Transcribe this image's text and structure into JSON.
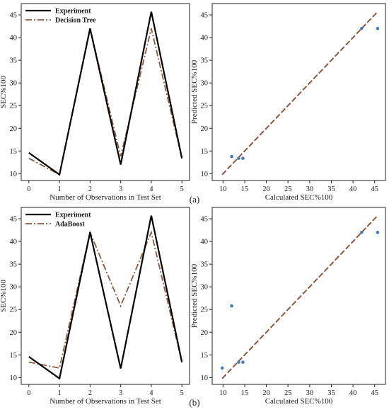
{
  "panels": [
    {
      "label": "(a)",
      "line_chart": {
        "type": "line",
        "xlabel": "Number of Observations in Test Set",
        "ylabel": "SEC%100",
        "xlim": [
          -0.25,
          5.25
        ],
        "ylim": [
          8.5,
          47.5
        ],
        "xticks": [
          0,
          1,
          2,
          3,
          4,
          5
        ],
        "yticks": [
          10,
          15,
          20,
          25,
          30,
          35,
          40,
          45
        ],
        "grid": false,
        "legend_position": "top-left",
        "x": [
          0,
          1,
          2,
          3,
          4,
          5
        ],
        "series": [
          {
            "name": "Experiment",
            "values": [
              14.6,
              9.8,
              42.0,
              12.0,
              45.7,
              13.4
            ],
            "color": "#000000",
            "style": "solid"
          },
          {
            "name": "Decision Tree",
            "values": [
              13.4,
              9.8,
              42.0,
              13.8,
              42.0,
              13.4
            ],
            "color": "#8b5a3c",
            "style": "dashdot"
          }
        ]
      },
      "scatter_chart": {
        "type": "scatter",
        "xlabel": "Calculated SEC%100",
        "ylabel": "Predicted SEC%100",
        "xlim": [
          7.5,
          47.5
        ],
        "ylim": [
          8.5,
          47.5
        ],
        "xticks": [
          10,
          15,
          20,
          25,
          30,
          35,
          40,
          45
        ],
        "yticks": [
          10,
          15,
          20,
          25,
          30,
          35,
          40,
          45
        ],
        "grid": false,
        "points": [
          {
            "x": 12.0,
            "y": 13.8
          },
          {
            "x": 13.6,
            "y": 13.4
          },
          {
            "x": 14.6,
            "y": 13.4
          },
          {
            "x": 42.0,
            "y": 42.0
          },
          {
            "x": 45.7,
            "y": 42.0
          }
        ],
        "point_color": "#4a7bb7",
        "reference_line": {
          "from": [
            9.8,
            9.8
          ],
          "to": [
            45.7,
            45.7
          ],
          "color": "#8b5a3c",
          "style": "dashed"
        }
      }
    },
    {
      "label": "(b)",
      "line_chart": {
        "type": "line",
        "xlabel": "Number of Observations in Test Set",
        "ylabel": "SEC%100",
        "xlim": [
          -0.25,
          5.25
        ],
        "ylim": [
          8.5,
          47.5
        ],
        "xticks": [
          0,
          1,
          2,
          3,
          4,
          5
        ],
        "yticks": [
          10,
          15,
          20,
          25,
          30,
          35,
          40,
          45
        ],
        "grid": false,
        "legend_position": "top-left",
        "x": [
          0,
          1,
          2,
          3,
          4,
          5
        ],
        "series": [
          {
            "name": "Experiment",
            "values": [
              14.6,
              9.8,
              42.0,
              12.0,
              45.7,
              13.4
            ],
            "color": "#000000",
            "style": "solid"
          },
          {
            "name": "AdaBoost",
            "values": [
              13.4,
              12.1,
              42.0,
              25.8,
              42.0,
              13.4
            ],
            "color": "#8b5a3c",
            "style": "dashdot"
          }
        ]
      },
      "scatter_chart": {
        "type": "scatter",
        "xlabel": "Calculated SEC%100",
        "ylabel": "Predicted SEC%100",
        "xlim": [
          7.5,
          47.5
        ],
        "ylim": [
          8.5,
          47.5
        ],
        "xticks": [
          10,
          15,
          20,
          25,
          30,
          35,
          40,
          45
        ],
        "yticks": [
          10,
          15,
          20,
          25,
          30,
          35,
          40,
          45
        ],
        "grid": false,
        "points": [
          {
            "x": 9.8,
            "y": 12.1
          },
          {
            "x": 12.0,
            "y": 25.8
          },
          {
            "x": 13.6,
            "y": 13.4
          },
          {
            "x": 14.6,
            "y": 13.4
          },
          {
            "x": 42.0,
            "y": 42.0
          },
          {
            "x": 45.7,
            "y": 42.0
          }
        ],
        "point_color": "#4a7bb7",
        "reference_line": {
          "from": [
            9.8,
            9.8
          ],
          "to": [
            45.7,
            45.7
          ],
          "color": "#8b5a3c",
          "style": "dashed"
        }
      }
    }
  ]
}
